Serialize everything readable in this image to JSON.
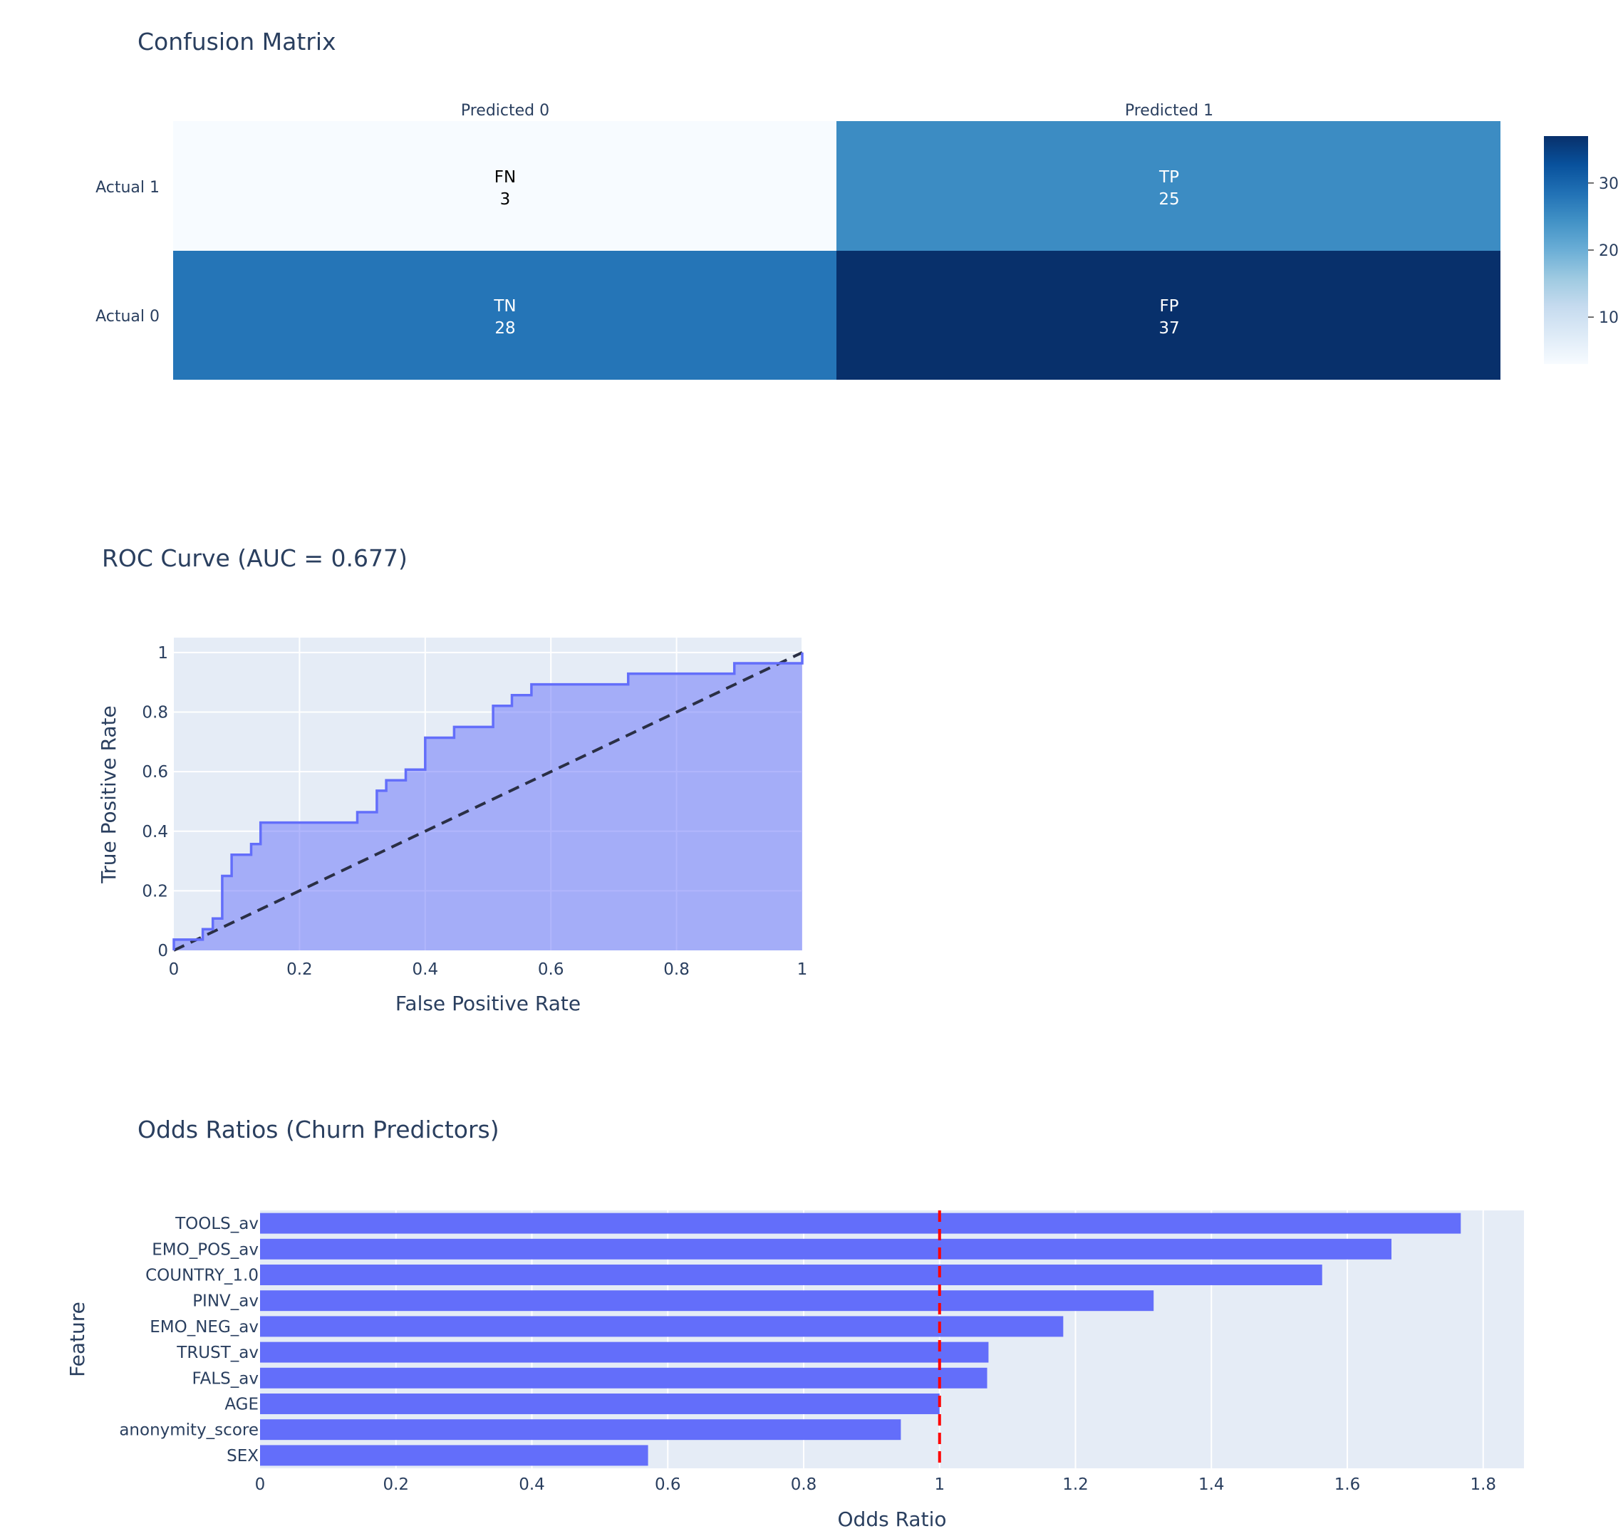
{
  "chart_data": [
    {
      "type": "heatmap",
      "title": "Confusion Matrix",
      "columns": [
        "Predicted 0",
        "Predicted 1"
      ],
      "rows": [
        "Actual 1",
        "Actual 0"
      ],
      "cells": [
        [
          {
            "label": "FN",
            "value": 3
          },
          {
            "label": "TP",
            "value": 25
          }
        ],
        [
          {
            "label": "TN",
            "value": 28
          },
          {
            "label": "FP",
            "value": 37
          }
        ]
      ],
      "colorscale": "Blues",
      "zmin": 3,
      "zmax": 37,
      "colorbar_ticks": [
        10,
        20,
        30
      ]
    },
    {
      "type": "area",
      "title": "ROC Curve (AUC = 0.677)",
      "xlabel": "False Positive Rate",
      "ylabel": "True Positive Rate",
      "xlim": [
        0,
        1
      ],
      "ylim": [
        0,
        1.05
      ],
      "xticks": [
        0,
        0.2,
        0.4,
        0.6,
        0.8,
        1
      ],
      "xtick_labels": [
        "0",
        "0.2",
        "0.4",
        "0.6",
        "0.8",
        "1"
      ],
      "yticks": [
        0,
        0.2,
        0.4,
        0.6,
        0.8,
        1
      ],
      "ytick_labels": [
        "0",
        "0.2",
        "0.4",
        "0.6",
        "0.8",
        "1"
      ],
      "grid": true,
      "series": [
        {
          "x": [
            0,
            0,
            0.046,
            0.046,
            0.062,
            0.062,
            0.077,
            0.077,
            0.092,
            0.092,
            0.123,
            0.123,
            0.138,
            0.138,
            0.292,
            0.292,
            0.323,
            0.323,
            0.338,
            0.338,
            0.369,
            0.369,
            0.4,
            0.4,
            0.446,
            0.446,
            0.508,
            0.508,
            0.538,
            0.538,
            0.569,
            0.569,
            0.723,
            0.723,
            0.892,
            0.892,
            1,
            1
          ],
          "y": [
            0,
            0.036,
            0.036,
            0.071,
            0.071,
            0.107,
            0.107,
            0.25,
            0.25,
            0.321,
            0.321,
            0.357,
            0.357,
            0.429,
            0.429,
            0.464,
            0.464,
            0.536,
            0.536,
            0.571,
            0.571,
            0.607,
            0.607,
            0.714,
            0.714,
            0.75,
            0.75,
            0.821,
            0.821,
            0.857,
            0.857,
            0.893,
            0.893,
            0.929,
            0.929,
            0.964,
            0.964,
            1
          ],
          "color": "#636efa",
          "fill": "tozeroy"
        },
        {
          "x": [
            0,
            1
          ],
          "y": [
            0,
            1
          ],
          "color": "#2a2f45",
          "dash": "dash"
        }
      ]
    },
    {
      "type": "bar",
      "orientation": "horizontal",
      "title": "Odds Ratios (Churn Predictors)",
      "xlabel": "Odds Ratio",
      "ylabel": "Feature",
      "categories": [
        "TOOLS_av",
        "EMO_POS_av",
        "COUNTRY_1.0",
        "PINV_av",
        "EMO_NEG_av",
        "TRUST_av",
        "FALS_av",
        "AGE",
        "anonymity_score",
        "SEX"
      ],
      "values": [
        1.767,
        1.665,
        1.563,
        1.315,
        1.182,
        1.072,
        1.07,
        1.0,
        0.943,
        0.571
      ],
      "xlim": [
        0,
        1.86
      ],
      "xticks": [
        0,
        0.2,
        0.4,
        0.6,
        0.8,
        1,
        1.2,
        1.4,
        1.6,
        1.8
      ],
      "xtick_labels": [
        "0",
        "0.2",
        "0.4",
        "0.6",
        "0.8",
        "1",
        "1.2",
        "1.4",
        "1.6",
        "1.8"
      ],
      "reference_line": 1,
      "bar_color": "#636efa",
      "reference_color": "#ff0000",
      "grid": true
    }
  ]
}
